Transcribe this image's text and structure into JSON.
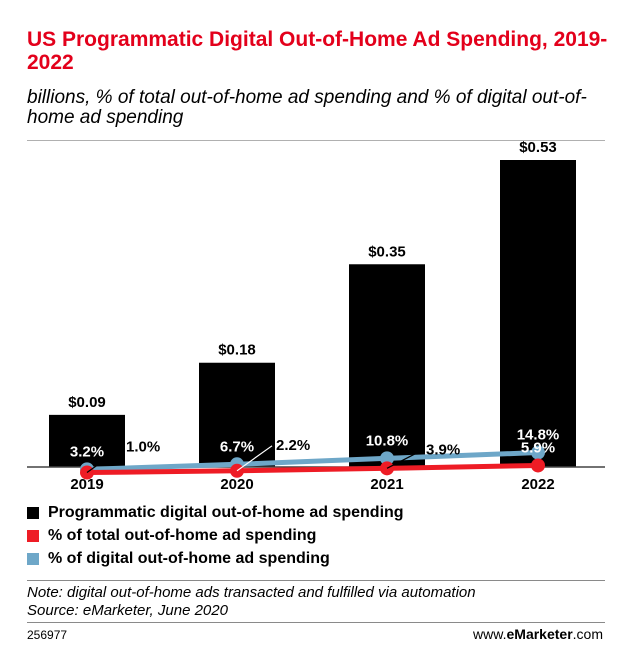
{
  "chart_data": {
    "type": "bar",
    "title": "US Programmatic Digital Out-of-Home Ad Spending, 2019-2022",
    "subtitle": "billions, % of total out-of-home ad spending and % of digital out-of-home ad spending",
    "categories": [
      "2019",
      "2020",
      "2021",
      "2022"
    ],
    "ylim": [
      0,
      0.6
    ],
    "series": [
      {
        "name": "Programmatic digital out-of-home ad spending",
        "kind": "bar",
        "color": "#000000",
        "values": [
          0.09,
          0.18,
          0.35,
          0.53
        ],
        "labels": [
          "$0.09",
          "$0.18",
          "$0.35",
          "$0.53"
        ]
      },
      {
        "name": "% of total out-of-home ad spending",
        "kind": "line",
        "color": "#ee1c25",
        "values": [
          1.0,
          2.2,
          3.9,
          5.9
        ],
        "labels": [
          "1.0%",
          "2.2%",
          "3.9%",
          "5.9%"
        ]
      },
      {
        "name": "% of digital out-of-home ad spending",
        "kind": "line",
        "color": "#6ea7c8",
        "values": [
          3.2,
          6.7,
          10.8,
          14.8
        ],
        "labels": [
          "3.2%",
          "6.7%",
          "10.8%",
          "14.8%"
        ]
      }
    ],
    "note": "Note: digital out-of-home ads transacted and fulfilled via automation",
    "source": "Source: eMarketer, June 2020",
    "chart_id": "256977",
    "brand_prefix": "www.",
    "brand_name": "eMarketer",
    "brand_suffix": ".com"
  }
}
